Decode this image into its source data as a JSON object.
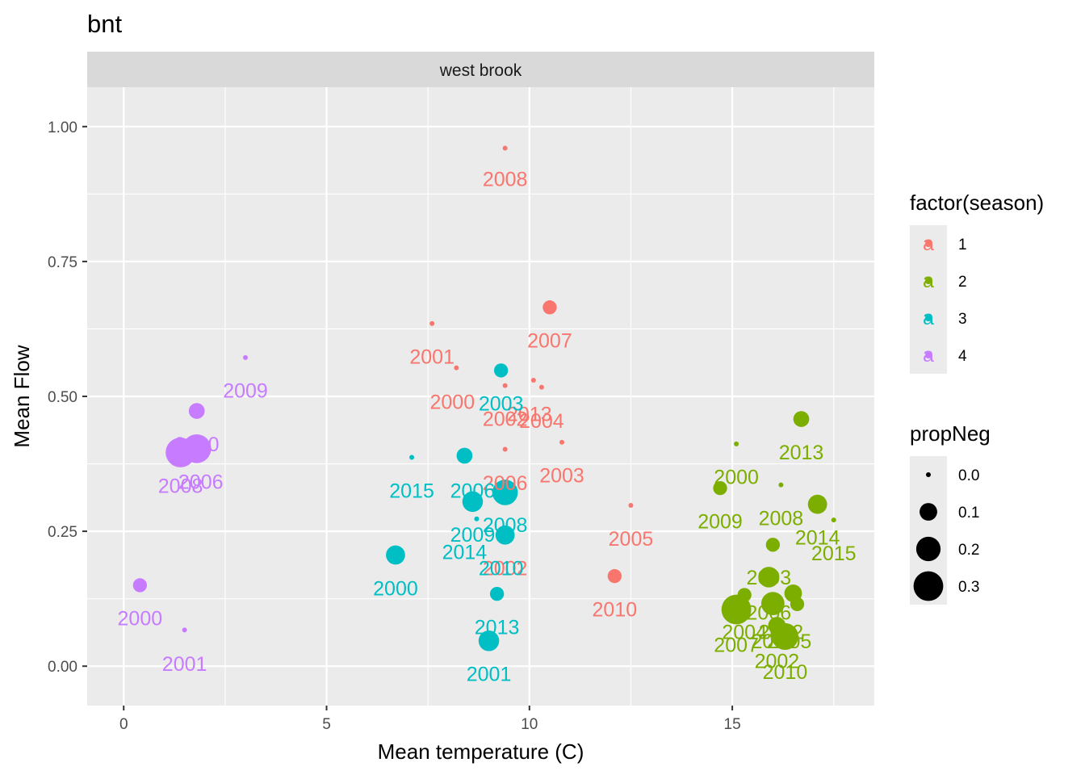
{
  "chart_data": {
    "type": "scatter",
    "title": "bnt",
    "facet_label": "west brook",
    "xlabel": "Mean temperature (C)",
    "ylabel": "Mean Flow",
    "xlim": [
      -0.9,
      18.5
    ],
    "ylim": [
      -0.073,
      1.073
    ],
    "x_ticks": [
      0,
      5,
      10,
      15
    ],
    "x_tick_labels": [
      "0",
      "5",
      "10",
      "15"
    ],
    "y_ticks": [
      0,
      0.25,
      0.5,
      0.75,
      1.0
    ],
    "y_tick_labels": [
      "0.00",
      "0.25",
      "0.50",
      "0.75",
      "1.00"
    ],
    "grid": true,
    "legend_position": "right",
    "color_legend": {
      "title": "factor(season)",
      "keys": [
        {
          "label": "1",
          "color": "#F8766D",
          "glyph": "a"
        },
        {
          "label": "2",
          "color": "#7CAE00",
          "glyph": "a"
        },
        {
          "label": "3",
          "color": "#00BFC4",
          "glyph": "a"
        },
        {
          "label": "4",
          "color": "#C77CFF",
          "glyph": "a"
        }
      ]
    },
    "size_legend": {
      "title": "propNeg",
      "keys": [
        {
          "label": "0.0",
          "value": 0.0
        },
        {
          "label": "0.1",
          "value": 0.1
        },
        {
          "label": "0.2",
          "value": 0.2
        },
        {
          "label": "0.3",
          "value": 0.3
        }
      ]
    },
    "points": [
      {
        "season": "1",
        "x": 9.4,
        "y": 0.96,
        "size": 0.0
      },
      {
        "season": "1",
        "x": 10.5,
        "y": 0.665,
        "size": 0.06
      },
      {
        "season": "1",
        "x": 7.6,
        "y": 0.635,
        "size": 0.0
      },
      {
        "season": "1",
        "x": 8.2,
        "y": 0.553,
        "size": 0.0
      },
      {
        "season": "1",
        "x": 10.1,
        "y": 0.53,
        "size": 0.0
      },
      {
        "season": "1",
        "x": 9.4,
        "y": 0.52,
        "size": 0.0
      },
      {
        "season": "1",
        "x": 10.3,
        "y": 0.517,
        "size": 0.0
      },
      {
        "season": "1",
        "x": 10.8,
        "y": 0.415,
        "size": 0.0
      },
      {
        "season": "1",
        "x": 9.4,
        "y": 0.402,
        "size": 0.0
      },
      {
        "season": "1",
        "x": 12.5,
        "y": 0.298,
        "size": 0.0
      },
      {
        "season": "1",
        "x": 12.1,
        "y": 0.167,
        "size": 0.06
      },
      {
        "season": "2",
        "x": 16.7,
        "y": 0.458,
        "size": 0.08
      },
      {
        "season": "2",
        "x": 15.1,
        "y": 0.412,
        "size": 0.0
      },
      {
        "season": "2",
        "x": 16.2,
        "y": 0.336,
        "size": 0.0
      },
      {
        "season": "2",
        "x": 14.7,
        "y": 0.33,
        "size": 0.06
      },
      {
        "season": "2",
        "x": 17.1,
        "y": 0.3,
        "size": 0.12
      },
      {
        "season": "2",
        "x": 17.5,
        "y": 0.271,
        "size": 0.0
      },
      {
        "season": "2",
        "x": 16.0,
        "y": 0.225,
        "size": 0.06
      },
      {
        "season": "2",
        "x": 15.9,
        "y": 0.165,
        "size": 0.14
      },
      {
        "season": "2",
        "x": 16.5,
        "y": 0.135,
        "size": 0.1
      },
      {
        "season": "2",
        "x": 15.3,
        "y": 0.132,
        "size": 0.06
      },
      {
        "season": "2",
        "x": 16.0,
        "y": 0.116,
        "size": 0.18
      },
      {
        "season": "2",
        "x": 16.6,
        "y": 0.115,
        "size": 0.06
      },
      {
        "season": "2",
        "x": 15.1,
        "y": 0.105,
        "size": 0.3
      },
      {
        "season": "2",
        "x": 16.1,
        "y": 0.075,
        "size": 0.1
      },
      {
        "season": "2",
        "x": 16.3,
        "y": 0.055,
        "size": 0.24
      },
      {
        "season": "3",
        "x": 9.3,
        "y": 0.548,
        "size": 0.06
      },
      {
        "season": "3",
        "x": 8.4,
        "y": 0.39,
        "size": 0.08
      },
      {
        "season": "3",
        "x": 7.1,
        "y": 0.387,
        "size": 0.0
      },
      {
        "season": "3",
        "x": 9.4,
        "y": 0.322,
        "size": 0.22
      },
      {
        "season": "3",
        "x": 8.6,
        "y": 0.305,
        "size": 0.14
      },
      {
        "season": "3",
        "x": 8.7,
        "y": 0.273,
        "size": 0.0
      },
      {
        "season": "3",
        "x": 9.4,
        "y": 0.243,
        "size": 0.12
      },
      {
        "season": "3",
        "x": 6.7,
        "y": 0.206,
        "size": 0.12
      },
      {
        "season": "3",
        "x": 9.2,
        "y": 0.134,
        "size": 0.06
      },
      {
        "season": "3",
        "x": 9.0,
        "y": 0.047,
        "size": 0.14
      },
      {
        "season": "4",
        "x": 3.0,
        "y": 0.572,
        "size": 0.0
      },
      {
        "season": "4",
        "x": 1.8,
        "y": 0.473,
        "size": 0.08
      },
      {
        "season": "4",
        "x": 1.8,
        "y": 0.403,
        "size": 0.28
      },
      {
        "season": "4",
        "x": 1.4,
        "y": 0.396,
        "size": 0.3
      },
      {
        "season": "4",
        "x": 0.4,
        "y": 0.15,
        "size": 0.06
      },
      {
        "season": "4",
        "x": 1.5,
        "y": 0.067,
        "size": 0.0
      }
    ],
    "labels": [
      {
        "season": "1",
        "text": "2008",
        "x": 9.4,
        "y": 0.903
      },
      {
        "season": "1",
        "text": "2007",
        "x": 10.5,
        "y": 0.604
      },
      {
        "season": "1",
        "text": "2001",
        "x": 7.6,
        "y": 0.574
      },
      {
        "season": "1",
        "text": "2000",
        "x": 8.1,
        "y": 0.49
      },
      {
        "season": "1",
        "text": "2002",
        "x": 9.4,
        "y": 0.459
      },
      {
        "season": "1",
        "text": "2013",
        "x": 10.0,
        "y": 0.468
      },
      {
        "season": "1",
        "text": "2004",
        "x": 10.3,
        "y": 0.455
      },
      {
        "season": "1",
        "text": "2006",
        "x": 9.4,
        "y": 0.34
      },
      {
        "season": "1",
        "text": "2003",
        "x": 10.8,
        "y": 0.354
      },
      {
        "season": "1",
        "text": "2005",
        "x": 12.5,
        "y": 0.237
      },
      {
        "season": "1",
        "text": "2002",
        "x": 9.4,
        "y": 0.182
      },
      {
        "season": "1",
        "text": "2010",
        "x": 12.1,
        "y": 0.106
      },
      {
        "season": "2",
        "text": "2013",
        "x": 16.7,
        "y": 0.397
      },
      {
        "season": "2",
        "text": "2000",
        "x": 15.1,
        "y": 0.351
      },
      {
        "season": "2",
        "text": "2009",
        "x": 14.7,
        "y": 0.269
      },
      {
        "season": "2",
        "text": "2008",
        "x": 16.2,
        "y": 0.275
      },
      {
        "season": "2",
        "text": "2014",
        "x": 17.1,
        "y": 0.239
      },
      {
        "season": "2",
        "text": "2015",
        "x": 17.5,
        "y": 0.21
      },
      {
        "season": "2",
        "text": "2003",
        "x": 15.9,
        "y": 0.165
      },
      {
        "season": "2",
        "text": "2006",
        "x": 15.9,
        "y": 0.1
      },
      {
        "season": "2",
        "text": "2012",
        "x": 16.2,
        "y": 0.064
      },
      {
        "season": "2",
        "text": "2004",
        "x": 15.3,
        "y": 0.064
      },
      {
        "season": "2",
        "text": "2005",
        "x": 16.4,
        "y": 0.047
      },
      {
        "season": "2",
        "text": "2011",
        "x": 16.0,
        "y": 0.047
      },
      {
        "season": "2",
        "text": "2007",
        "x": 15.1,
        "y": 0.04
      },
      {
        "season": "2",
        "text": "2002",
        "x": 16.1,
        "y": 0.01
      },
      {
        "season": "2",
        "text": "2010",
        "x": 16.3,
        "y": -0.01
      },
      {
        "season": "3",
        "text": "2003",
        "x": 9.3,
        "y": 0.487
      },
      {
        "season": "3",
        "text": "2015",
        "x": 7.1,
        "y": 0.326
      },
      {
        "season": "3",
        "text": "2006",
        "x": 8.6,
        "y": 0.326
      },
      {
        "season": "3",
        "text": "2008",
        "x": 9.4,
        "y": 0.262
      },
      {
        "season": "3",
        "text": "2009",
        "x": 8.6,
        "y": 0.244
      },
      {
        "season": "3",
        "text": "2014",
        "x": 8.4,
        "y": 0.212
      },
      {
        "season": "3",
        "text": "2010",
        "x": 9.3,
        "y": 0.182
      },
      {
        "season": "3",
        "text": "2000",
        "x": 6.7,
        "y": 0.145
      },
      {
        "season": "3",
        "text": "2013",
        "x": 9.2,
        "y": 0.073
      },
      {
        "season": "3",
        "text": "2001",
        "x": 9.0,
        "y": -0.014
      },
      {
        "season": "4",
        "text": "2009",
        "x": 3.0,
        "y": 0.511
      },
      {
        "season": "4",
        "text": "2010",
        "x": 1.8,
        "y": 0.412
      },
      {
        "season": "4",
        "text": "2006",
        "x": 1.9,
        "y": 0.342
      },
      {
        "season": "4",
        "text": "2008",
        "x": 1.4,
        "y": 0.335
      },
      {
        "season": "4",
        "text": "2000",
        "x": 0.4,
        "y": 0.089
      },
      {
        "season": "4",
        "text": "2001",
        "x": 1.5,
        "y": 0.005
      }
    ]
  }
}
